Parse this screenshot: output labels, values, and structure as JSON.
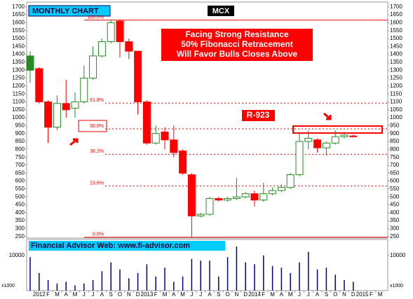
{
  "chart_data": {
    "type": "candlestick",
    "title": "MONTHLY CHART",
    "symbol": "MCX",
    "annotations": {
      "resistance": [
        "Facing Strong Resistance",
        "50% Fibonacci Retracement",
        "Will Favor Bulls Closes Above"
      ],
      "resistance_level": "R-923",
      "website": "Financial Advisor Web: www.fi-advisor.com",
      "volume_unit": "x1000"
    },
    "categories": [
      null,
      "2012",
      "F",
      "M",
      "A",
      "M",
      "J",
      "J",
      "A",
      "S",
      "O",
      "N",
      "D",
      "2013",
      "F",
      "M",
      "A",
      "M",
      "J",
      "J",
      "A",
      "S",
      "O",
      "N",
      "D",
      "2014",
      "F",
      "M",
      "A",
      "M",
      "J",
      "J",
      "A",
      "S",
      "O",
      "N",
      "D",
      "2015",
      "F",
      "M"
    ],
    "open": [
      1300,
      1310,
      1100,
      940,
      1090,
      1060,
      1100,
      1250,
      1390,
      1480,
      1610,
      1480,
      1420,
      1100,
      840,
      910,
      860,
      790,
      640,
      380,
      390,
      490,
      480,
      490,
      500,
      520,
      480,
      520,
      540,
      560,
      640,
      850,
      860,
      810,
      840,
      880,
      885,
      null,
      null,
      null
    ],
    "high": [
      1420,
      1320,
      1110,
      1140,
      1240,
      1160,
      1330,
      1450,
      1500,
      1620,
      1620,
      1500,
      1420,
      1110,
      950,
      940,
      950,
      800,
      650,
      400,
      500,
      500,
      500,
      620,
      530,
      540,
      590,
      560,
      580,
      650,
      900,
      920,
      870,
      850,
      920,
      900,
      895,
      null,
      null,
      null
    ],
    "low": [
      1220,
      1090,
      840,
      920,
      1000,
      1000,
      1090,
      1240,
      1380,
      1470,
      1380,
      1370,
      1020,
      830,
      830,
      800,
      750,
      640,
      245,
      370,
      380,
      470,
      470,
      480,
      490,
      440,
      470,
      510,
      530,
      550,
      630,
      800,
      780,
      760,
      830,
      870,
      875,
      null,
      null,
      null
    ],
    "close": [
      1390,
      1100,
      940,
      1090,
      1050,
      1100,
      1250,
      1390,
      1480,
      1600,
      1480,
      1420,
      1100,
      840,
      900,
      860,
      780,
      650,
      380,
      390,
      490,
      480,
      490,
      500,
      520,
      480,
      520,
      540,
      560,
      640,
      850,
      870,
      810,
      840,
      880,
      890,
      880,
      null,
      null,
      null
    ],
    "volume": [
      9500,
      5000,
      3000,
      2000,
      2500,
      1500,
      2000,
      3000,
      5500,
      8000,
      6000,
      3500,
      5000,
      7500,
      4000,
      6500,
      2500,
      4000,
      9000,
      8500,
      8500,
      4000,
      9500,
      12500,
      8000,
      7500,
      10000,
      7000,
      6500,
      5000,
      8000,
      11000,
      6000,
      6500,
      4500,
      3000,
      2500,
      null,
      null,
      null
    ],
    "up_color": "#228b22",
    "down_color": "#ff0000",
    "ylim": [
      240,
      1730
    ],
    "yticks": [
      250,
      300,
      350,
      400,
      450,
      500,
      550,
      600,
      650,
      700,
      750,
      800,
      850,
      900,
      950,
      1000,
      1050,
      1100,
      1150,
      1200,
      1250,
      1300,
      1350,
      1400,
      1450,
      1500,
      1550,
      1600,
      1650,
      1700
    ],
    "vlim": [
      0,
      14500
    ],
    "vticks": [
      10000
    ],
    "levels": [
      {
        "label": "100.0%",
        "value": 1616
      },
      {
        "label": "61.8%",
        "value": 1092
      },
      {
        "label": "50.0%",
        "value": 930
      },
      {
        "label": "38.2%",
        "value": 769
      },
      {
        "label": "23.6%",
        "value": 569
      },
      {
        "label": "0.0%",
        "value": 245
      }
    ]
  }
}
